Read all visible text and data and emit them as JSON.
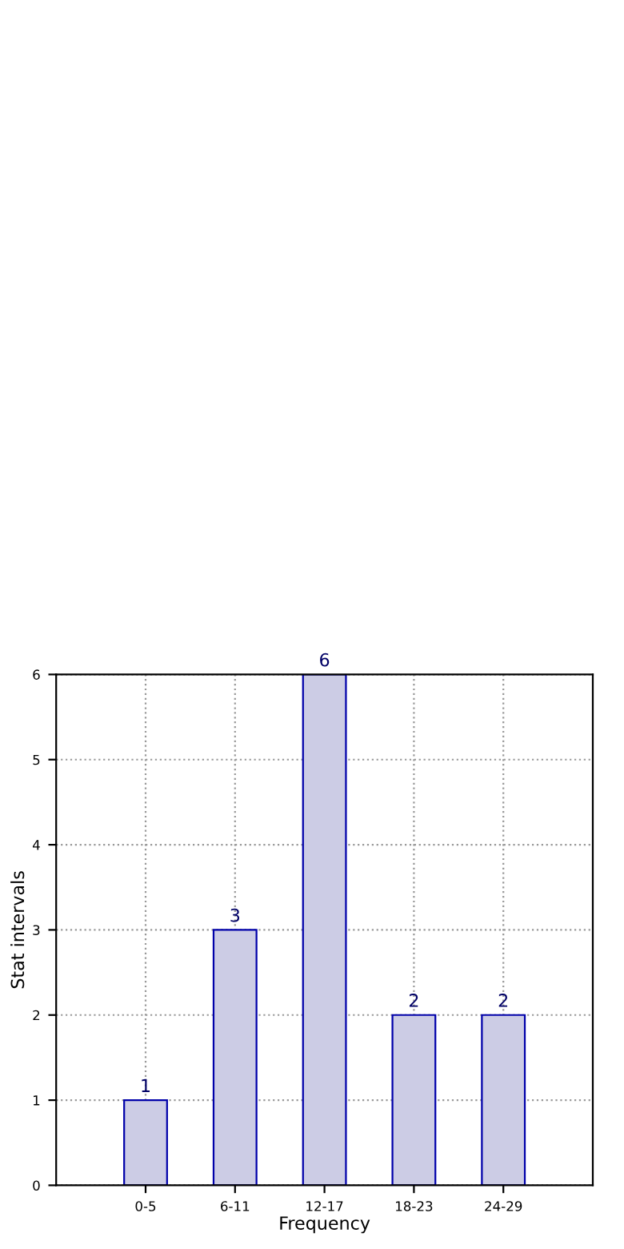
{
  "chart_data": {
    "type": "bar",
    "xlabel": "Frequency",
    "ylabel": "Stat intervals",
    "categories": [
      "0-5",
      "6-11",
      "12-17",
      "18-23",
      "24-29"
    ],
    "values": [
      1,
      3,
      6,
      2,
      2
    ],
    "color": "#ccccE5",
    "ylim": [
      0,
      6
    ],
    "yticks": [
      0,
      1,
      2,
      3,
      4,
      5,
      6
    ],
    "grid": true,
    "data_labels": true
  }
}
